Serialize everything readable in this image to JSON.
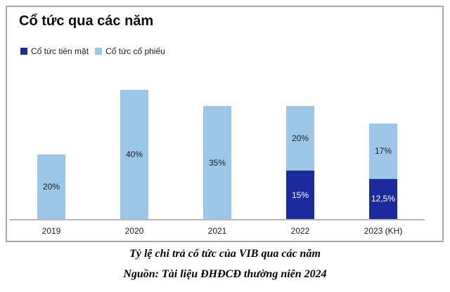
{
  "card": {
    "border_color": "#a6a6a6",
    "background": "#ffffff"
  },
  "chart": {
    "title": "Cổ tức qua các năm",
    "axis_line_color": "#b7b7b7",
    "legend": [
      {
        "label": "Cổ tức tiền mặt",
        "color": "#1b2b9e"
      },
      {
        "label": "Cổ tức cổ phiếu",
        "color": "#9dc7e8"
      }
    ]
  },
  "chart_data": {
    "type": "bar",
    "stacked": true,
    "title": "Cổ tức qua các năm",
    "categories": [
      "2019",
      "2020",
      "2021",
      "2022",
      "2023 (KH)"
    ],
    "series": [
      {
        "name": "Cổ tức tiền mặt",
        "color": "#1b2b9e",
        "label_color": "#ffffff",
        "values": [
          0,
          0,
          0,
          15,
          12.5
        ],
        "display_labels": [
          "",
          "",
          "",
          "15%",
          "12,5%"
        ]
      },
      {
        "name": "Cổ tức cổ phiếu",
        "color": "#9dc7e8",
        "label_color": "#1a1a1a",
        "values": [
          20,
          40,
          35,
          20,
          17
        ],
        "display_labels": [
          "20%",
          "40%",
          "35%",
          "20%",
          "17%"
        ]
      }
    ],
    "ylim": [
      0,
      40
    ],
    "value_unit": "%",
    "grid": false,
    "legend_position": "top-left",
    "xlabel": "",
    "ylabel": ""
  },
  "caption": {
    "line1": "Tỷ lệ chi trả cổ tức của VIB qua các năm",
    "line2": "Nguồn: Tài liệu ĐHĐCĐ thường niên 2024"
  }
}
